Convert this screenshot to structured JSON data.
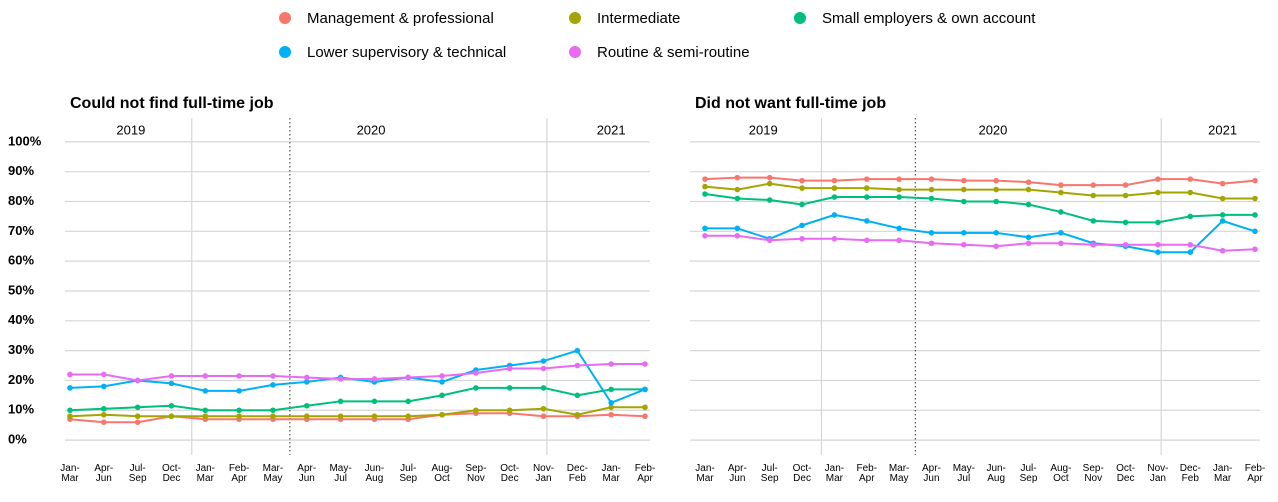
{
  "chart_data": [
    {
      "type": "line",
      "title": "Could not find full-time job",
      "categories": [
        "Jan-Mar",
        "Apr-Jun",
        "Jul-Sep",
        "Oct-Dec",
        "Jan-Mar",
        "Feb-Apr",
        "Mar-May",
        "Apr-Jun",
        "May-Jul",
        "Jun-Aug",
        "Jul-Sep",
        "Aug-Oct",
        "Sep-Nov",
        "Oct-Dec",
        "Nov-Jan",
        "Dec-Feb",
        "Jan-Mar",
        "Feb-Apr"
      ],
      "annotations": [
        "2019",
        "2020",
        "2021"
      ],
      "ylim": [
        -5,
        108
      ],
      "yticks": [
        {
          "value": 0,
          "label": "0%"
        },
        {
          "value": 10,
          "label": "10%"
        },
        {
          "value": 20,
          "label": "20%"
        },
        {
          "value": 30,
          "label": "30%"
        },
        {
          "value": 40,
          "label": "40%"
        },
        {
          "value": 50,
          "label": "50%"
        },
        {
          "value": 60,
          "label": "60%"
        },
        {
          "value": 70,
          "label": "70%"
        },
        {
          "value": 80,
          "label": "80%"
        },
        {
          "value": 90,
          "label": "90%"
        },
        {
          "value": 100,
          "label": "100%"
        }
      ],
      "grid": true,
      "series": [
        {
          "name": "Management & professional",
          "color": "#f8766d",
          "values": [
            7,
            6,
            6,
            8,
            7,
            7,
            7,
            7,
            7,
            7,
            7,
            8.5,
            9,
            9,
            8,
            8,
            8.5,
            8
          ]
        },
        {
          "name": "Intermediate",
          "color": "#a3a500",
          "values": [
            8,
            8.5,
            8,
            8,
            8,
            8,
            8,
            8,
            8,
            8,
            8,
            8.5,
            10,
            10,
            10.5,
            8.5,
            11,
            11
          ]
        },
        {
          "name": "Small employers & own account",
          "color": "#00bf7d",
          "values": [
            10,
            10.5,
            11,
            11.5,
            10,
            10,
            10,
            11.5,
            13,
            13,
            13,
            15,
            17.5,
            17.5,
            17.5,
            15,
            17,
            17
          ]
        },
        {
          "name": "Lower supervisory & technical",
          "color": "#00b0f6",
          "values": [
            17.5,
            18,
            20,
            19,
            16.5,
            16.5,
            18.5,
            19.5,
            21,
            19.5,
            21,
            19.5,
            23.5,
            25,
            26.5,
            30,
            12.5,
            17
          ]
        },
        {
          "name": "Routine & semi-routine",
          "color": "#e76bf3",
          "values": [
            22,
            22,
            20,
            21.5,
            21.5,
            21.5,
            21.5,
            21,
            20.5,
            20.5,
            21,
            21.5,
            22.5,
            24,
            24,
            25,
            25.5,
            25.5
          ]
        }
      ]
    },
    {
      "type": "line",
      "title": "Did not want full-time job",
      "categories": [
        "Jan-Mar",
        "Apr-Jun",
        "Jul-Sep",
        "Oct-Dec",
        "Jan-Mar",
        "Feb-Apr",
        "Mar-May",
        "Apr-Jun",
        "May-Jul",
        "Jun-Aug",
        "Jul-Sep",
        "Aug-Oct",
        "Sep-Nov",
        "Oct-Dec",
        "Nov-Jan",
        "Dec-Feb",
        "Jan-Mar",
        "Feb-Apr"
      ],
      "annotations": [
        "2019",
        "2020",
        "2021"
      ],
      "ylim": [
        -5,
        108
      ],
      "yticks": [
        0,
        10,
        20,
        30,
        40,
        50,
        60,
        70,
        80,
        90,
        100
      ],
      "grid": true,
      "series": [
        {
          "name": "Management & professional",
          "color": "#f8766d",
          "values": [
            87.5,
            88,
            88,
            87,
            87,
            87.5,
            87.5,
            87.5,
            87,
            87,
            86.5,
            85.5,
            85.5,
            85.5,
            87.5,
            87.5,
            86,
            87
          ]
        },
        {
          "name": "Intermediate",
          "color": "#a3a500",
          "values": [
            85,
            84,
            86,
            84.5,
            84.5,
            84.5,
            84,
            84,
            84,
            84,
            84,
            83,
            82,
            82,
            83,
            83,
            81,
            81
          ]
        },
        {
          "name": "Small employers & own account",
          "color": "#00bf7d",
          "values": [
            82.5,
            81,
            80.5,
            79,
            81.5,
            81.5,
            81.5,
            81,
            80,
            80,
            79,
            76.5,
            73.5,
            73,
            73,
            75,
            75.5,
            75.5
          ]
        },
        {
          "name": "Lower supervisory & technical",
          "color": "#00b0f6",
          "values": [
            71,
            71,
            67.5,
            72,
            75.5,
            73.5,
            71,
            69.5,
            69.5,
            69.5,
            68,
            69.5,
            66,
            65,
            63,
            63,
            73.5,
            70
          ]
        },
        {
          "name": "Routine & semi-routine",
          "color": "#e76bf3",
          "values": [
            68.5,
            68.5,
            67,
            67.5,
            67.5,
            67,
            67,
            66,
            65.5,
            65,
            66,
            66,
            65.5,
            65.5,
            65.5,
            65.5,
            63.5,
            64
          ]
        }
      ]
    }
  ]
}
